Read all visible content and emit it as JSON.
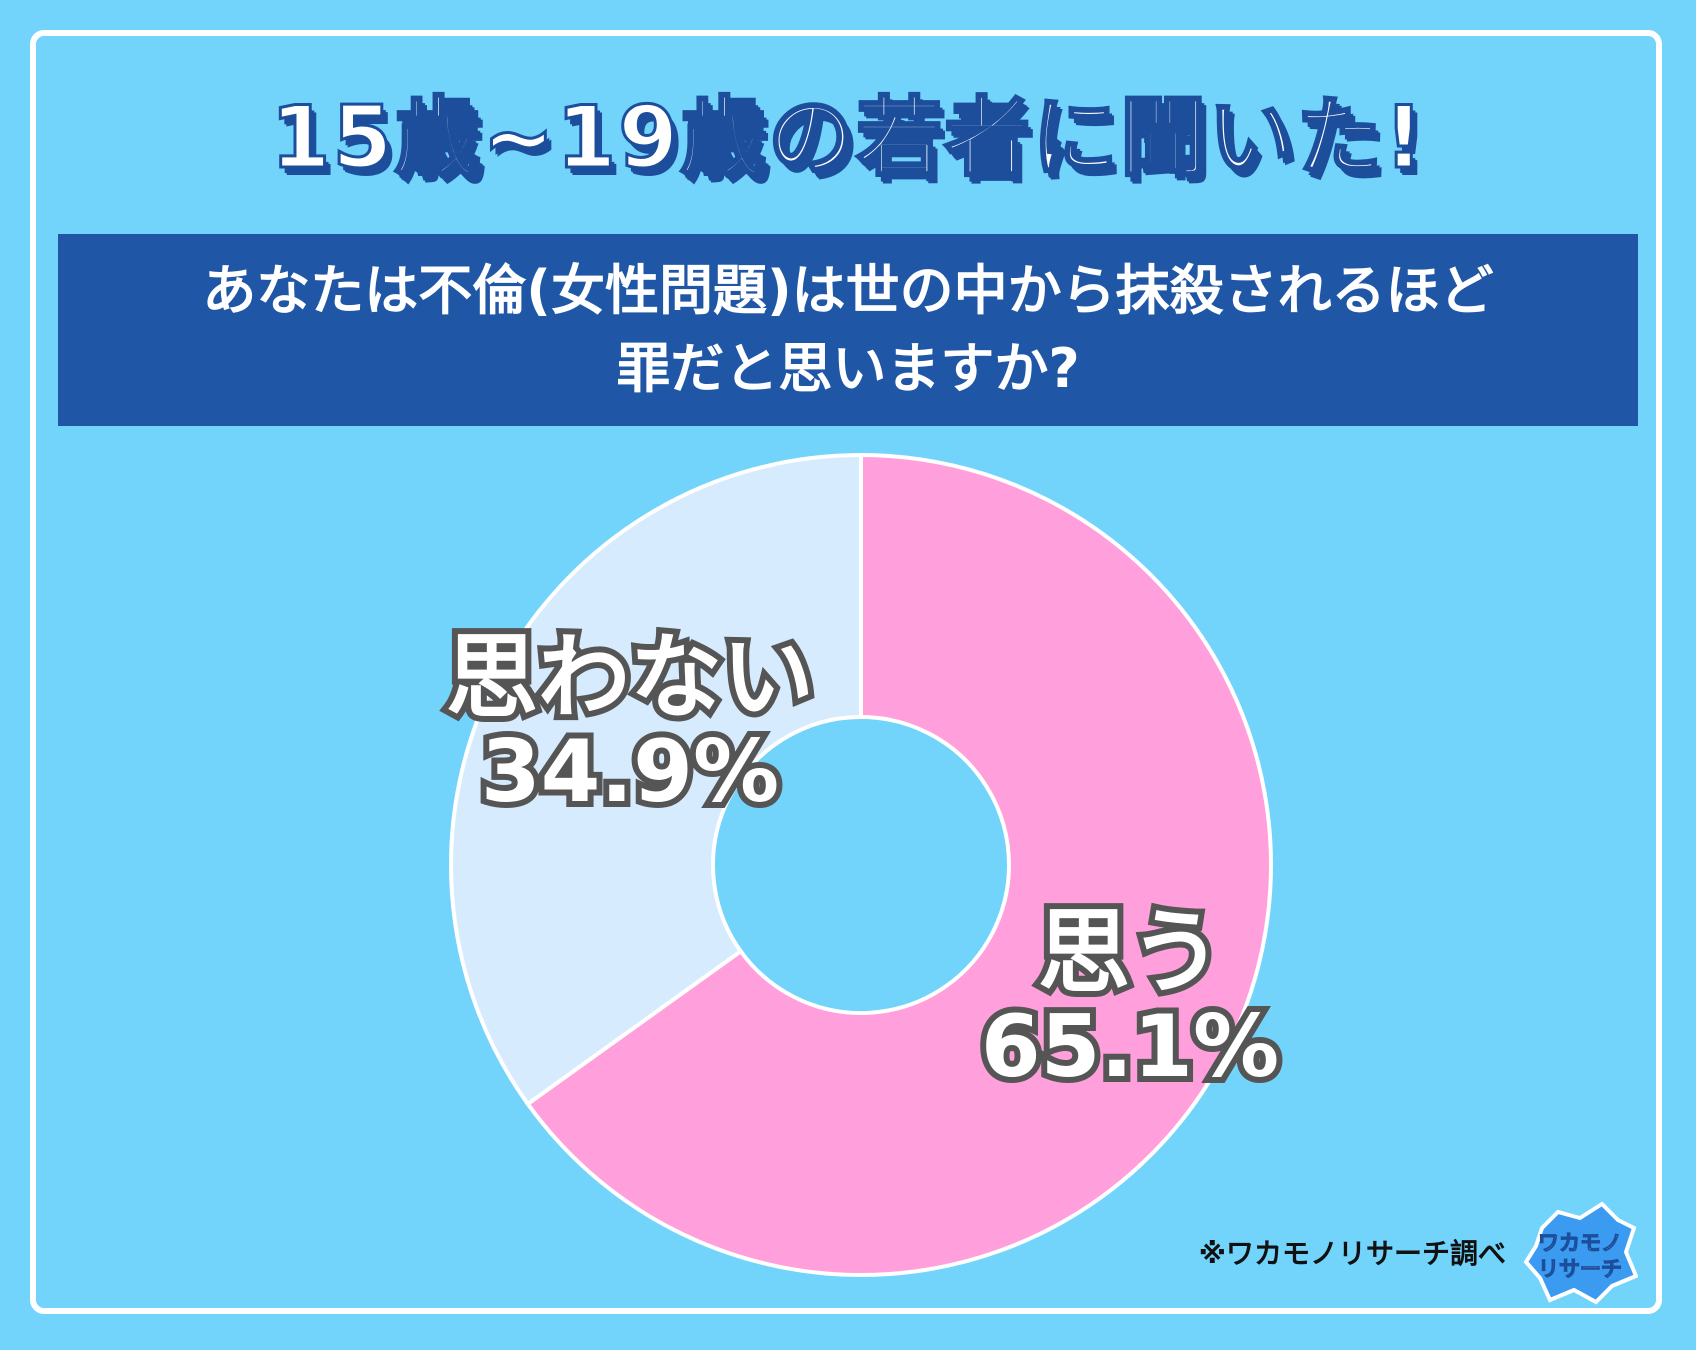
{
  "headline": "15歳~19歳の若者に聞いた!",
  "question": {
    "line1": "あなたは不倫(女性問題)は世の中から抹殺されるほど",
    "line2": "罪だと思いますか?"
  },
  "chart_data": {
    "type": "pie",
    "title": "",
    "slices": [
      {
        "label": "思う",
        "value": 65.1,
        "display": "65.1%",
        "color": "#ffa0dc"
      },
      {
        "label": "思わない",
        "value": 34.9,
        "display": "34.9%",
        "color": "#d6ebfd"
      }
    ]
  },
  "source": "※ワカモノリサーチ調べ",
  "logo": {
    "line1": "ワカモノ",
    "line2": "リサーチ"
  },
  "colors": {
    "background": "#72d3fb",
    "banner": "#1f57a6",
    "headline_outline": "#1d4e9c",
    "slice_border": "#ffffff"
  }
}
